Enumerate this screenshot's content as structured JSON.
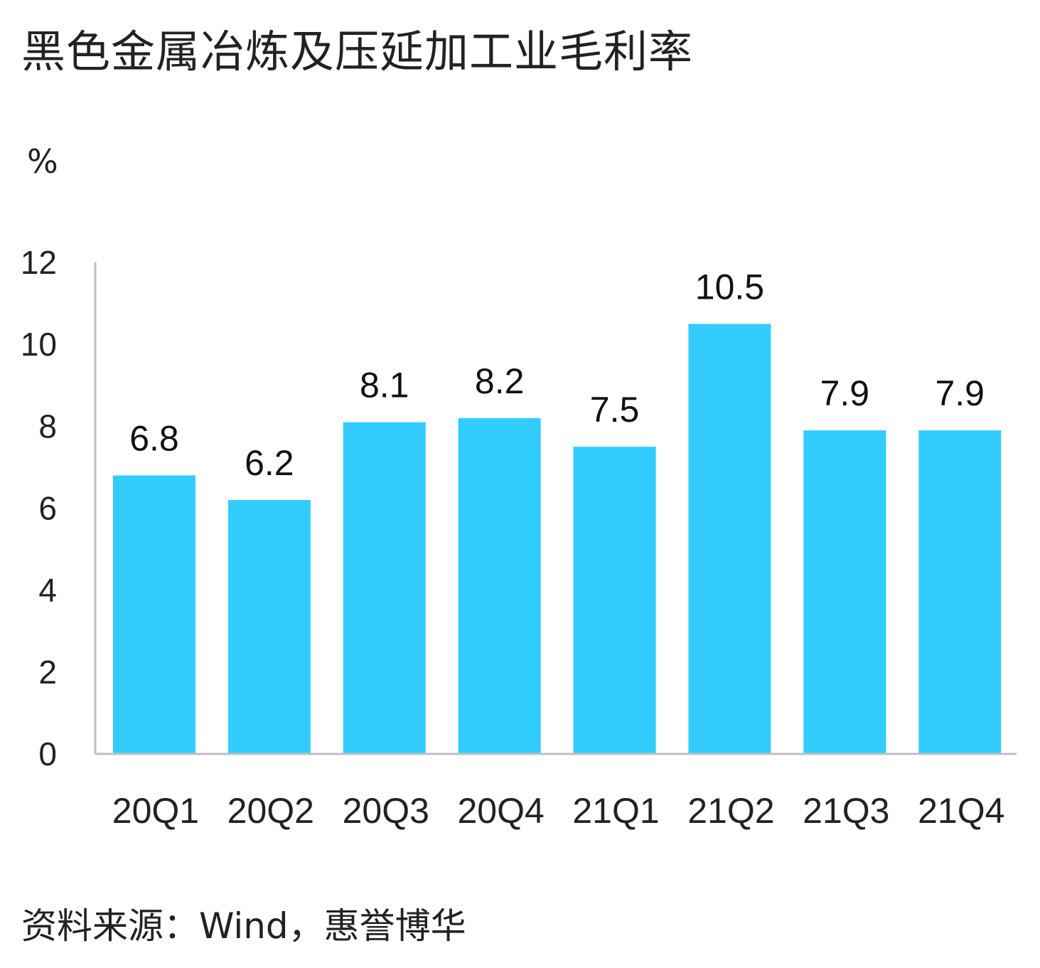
{
  "chart_data": {
    "type": "bar",
    "title": "黑色金属冶炼及压延加工业毛利率",
    "unit": "%",
    "categories": [
      "20Q1",
      "20Q2",
      "20Q3",
      "20Q4",
      "21Q1",
      "21Q2",
      "21Q3",
      "21Q4"
    ],
    "values": [
      6.8,
      6.2,
      8.1,
      8.2,
      7.5,
      10.5,
      7.9,
      7.9
    ],
    "value_labels": [
      "6.8",
      "6.2",
      "8.1",
      "8.2",
      "7.5",
      "10.5",
      "7.9",
      "7.9"
    ],
    "ylim": [
      0,
      12
    ],
    "yticks": [
      0,
      2,
      4,
      6,
      8,
      10,
      12
    ],
    "grid": false,
    "legend": "none",
    "bar_color": "#33CCFF",
    "axis_color": "#BFBFBF"
  },
  "source": "资料来源：Wind，惠誉博华"
}
